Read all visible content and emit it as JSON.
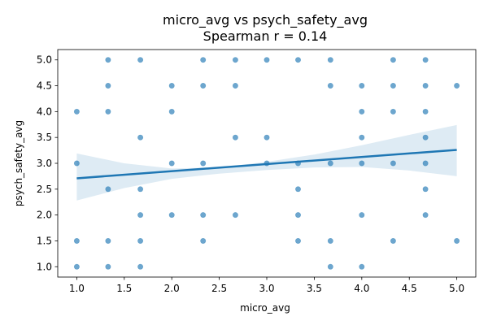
{
  "chart_data": {
    "type": "scatter",
    "title": "micro_avg vs psych_safety_avg",
    "subtitle": "Spearman r = 0.14",
    "xlabel": "micro_avg",
    "ylabel": "psych_safety_avg",
    "xlim": [
      0.8,
      5.2
    ],
    "ylim": [
      0.8,
      5.2
    ],
    "xticks": [
      "1.0",
      "1.5",
      "2.0",
      "2.5",
      "3.0",
      "3.5",
      "4.0",
      "4.5",
      "5.0"
    ],
    "yticks": [
      "1.0",
      "1.5",
      "2.0",
      "2.5",
      "3.0",
      "3.5",
      "4.0",
      "4.5",
      "5.0"
    ],
    "grid": false,
    "colors": {
      "points": "#1f77b4",
      "line": "#1f77b4",
      "band": "#1f77b4"
    },
    "points": [
      [
        1.0,
        1.0
      ],
      [
        1.0,
        1.5
      ],
      [
        1.0,
        3.0
      ],
      [
        1.0,
        4.0
      ],
      [
        1.33,
        1.0
      ],
      [
        1.33,
        1.5
      ],
      [
        1.33,
        2.5
      ],
      [
        1.33,
        4.0
      ],
      [
        1.33,
        4.5
      ],
      [
        1.33,
        5.0
      ],
      [
        1.67,
        1.0
      ],
      [
        1.67,
        1.5
      ],
      [
        1.67,
        2.0
      ],
      [
        1.67,
        2.5
      ],
      [
        1.67,
        3.5
      ],
      [
        1.67,
        5.0
      ],
      [
        2.0,
        2.0
      ],
      [
        2.0,
        3.0
      ],
      [
        2.0,
        4.0
      ],
      [
        2.0,
        4.5
      ],
      [
        2.33,
        1.5
      ],
      [
        2.33,
        2.0
      ],
      [
        2.33,
        3.0
      ],
      [
        2.33,
        4.5
      ],
      [
        2.33,
        5.0
      ],
      [
        2.67,
        2.0
      ],
      [
        2.67,
        3.5
      ],
      [
        2.67,
        4.5
      ],
      [
        2.67,
        5.0
      ],
      [
        3.0,
        3.0
      ],
      [
        3.0,
        3.5
      ],
      [
        3.0,
        5.0
      ],
      [
        3.33,
        1.5
      ],
      [
        3.33,
        2.0
      ],
      [
        3.33,
        2.5
      ],
      [
        3.33,
        3.0
      ],
      [
        3.33,
        5.0
      ],
      [
        3.67,
        1.0
      ],
      [
        3.67,
        1.5
      ],
      [
        3.67,
        3.0
      ],
      [
        3.67,
        4.5
      ],
      [
        3.67,
        5.0
      ],
      [
        4.0,
        1.0
      ],
      [
        4.0,
        2.0
      ],
      [
        4.0,
        3.0
      ],
      [
        4.0,
        3.5
      ],
      [
        4.0,
        4.0
      ],
      [
        4.0,
        4.5
      ],
      [
        4.33,
        1.5
      ],
      [
        4.33,
        3.0
      ],
      [
        4.33,
        4.0
      ],
      [
        4.33,
        4.5
      ],
      [
        4.33,
        5.0
      ],
      [
        4.67,
        2.0
      ],
      [
        4.67,
        2.5
      ],
      [
        4.67,
        3.0
      ],
      [
        4.67,
        3.5
      ],
      [
        4.67,
        4.0
      ],
      [
        4.67,
        4.5
      ],
      [
        4.67,
        5.0
      ],
      [
        5.0,
        1.5
      ],
      [
        5.0,
        4.5
      ]
    ],
    "regression": {
      "line": [
        [
          1.0,
          2.71
        ],
        [
          5.0,
          3.26
        ]
      ],
      "ci_upper": [
        [
          1.0,
          3.19
        ],
        [
          1.5,
          3.0
        ],
        [
          2.0,
          2.9
        ],
        [
          2.5,
          2.92
        ],
        [
          3.0,
          3.03
        ],
        [
          3.5,
          3.17
        ],
        [
          4.0,
          3.35
        ],
        [
          4.5,
          3.55
        ],
        [
          5.0,
          3.74
        ]
      ],
      "ci_lower": [
        [
          1.0,
          2.28
        ],
        [
          1.5,
          2.52
        ],
        [
          2.0,
          2.7
        ],
        [
          2.5,
          2.8
        ],
        [
          3.0,
          2.87
        ],
        [
          3.5,
          2.92
        ],
        [
          4.0,
          2.93
        ],
        [
          4.5,
          2.86
        ],
        [
          5.0,
          2.75
        ]
      ]
    }
  }
}
